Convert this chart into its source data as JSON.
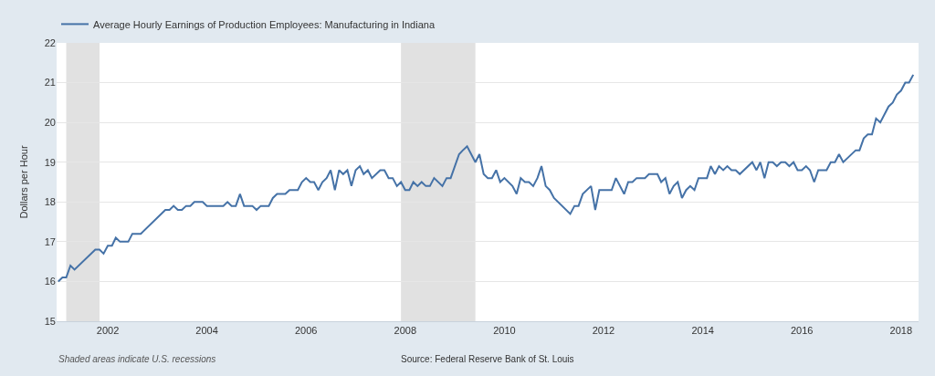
{
  "chart_data": {
    "type": "line",
    "ylabel": "Dollars per Hour",
    "x": [
      "2001-01",
      "2001-02",
      "2001-03",
      "2001-04",
      "2001-05",
      "2001-10",
      "2001-11",
      "2001-12",
      "2002-01",
      "2002-02",
      "2002-03",
      "2002-04",
      "2002-06",
      "2002-07",
      "2002-09",
      "2003-03",
      "2003-04",
      "2003-05",
      "2003-06",
      "2003-07",
      "2003-08",
      "2003-09",
      "2003-10",
      "2003-12",
      "2004-01",
      "2004-05",
      "2004-06",
      "2004-07",
      "2004-08",
      "2004-09",
      "2004-10",
      "2004-12",
      "2005-01",
      "2005-02",
      "2005-04",
      "2005-05",
      "2005-06",
      "2005-08",
      "2005-09",
      "2005-11",
      "2005-12",
      "2006-01",
      "2006-02",
      "2006-03",
      "2006-04",
      "2006-05",
      "2006-06",
      "2006-07",
      "2006-08",
      "2006-09",
      "2006-10",
      "2006-11",
      "2006-12",
      "2007-01",
      "2007-02",
      "2007-03",
      "2007-04",
      "2007-05",
      "2007-07",
      "2007-08",
      "2007-09",
      "2007-10",
      "2007-11",
      "2007-12",
      "2008-01",
      "2008-02",
      "2008-03",
      "2008-04",
      "2008-05",
      "2008-06",
      "2008-07",
      "2008-08",
      "2008-10",
      "2008-11",
      "2008-12",
      "2009-02",
      "2009-03",
      "2009-04",
      "2009-06",
      "2009-07",
      "2009-08",
      "2009-09",
      "2009-10",
      "2009-11",
      "2009-12",
      "2010-01",
      "2010-03",
      "2010-04",
      "2010-05",
      "2010-06",
      "2010-07",
      "2010-08",
      "2010-09",
      "2010-10",
      "2010-11",
      "2010-12",
      "2011-01",
      "2011-05",
      "2011-06",
      "2011-07",
      "2011-08",
      "2011-10",
      "2011-11",
      "2011-12",
      "2012-03",
      "2012-04",
      "2012-06",
      "2012-07",
      "2012-08",
      "2012-09",
      "2012-11",
      "2012-12",
      "2013-02",
      "2013-03",
      "2013-04",
      "2013-05",
      "2013-06",
      "2013-07",
      "2013-08",
      "2013-09",
      "2013-10",
      "2013-11",
      "2013-12",
      "2014-02",
      "2014-03",
      "2014-04",
      "2014-05",
      "2014-06",
      "2014-07",
      "2014-08",
      "2014-09",
      "2014-10",
      "2015-01",
      "2015-02",
      "2015-03",
      "2015-04",
      "2015-05",
      "2015-06",
      "2015-07",
      "2015-08",
      "2015-09",
      "2015-10",
      "2015-11",
      "2015-12",
      "2016-01",
      "2016-02",
      "2016-03",
      "2016-04",
      "2016-05",
      "2016-07",
      "2016-08",
      "2016-09",
      "2016-10",
      "2016-11",
      "2017-02",
      "2017-03",
      "2017-04",
      "2017-05",
      "2017-06",
      "2017-07",
      "2017-08",
      "2017-10",
      "2017-11",
      "2017-12",
      "2018-01",
      "2018-02",
      "2018-03",
      "2018-04"
    ],
    "series": [
      {
        "name": "Average Hourly Earnings of Production Employees: Manufacturing in Indiana",
        "color": "#4572a7",
        "values": [
          16.0,
          16.1,
          16.1,
          16.4,
          16.3,
          16.8,
          16.8,
          16.7,
          16.9,
          16.9,
          17.1,
          17.0,
          17.0,
          17.2,
          17.2,
          17.8,
          17.8,
          17.9,
          17.8,
          17.8,
          17.9,
          17.9,
          18.0,
          18.0,
          17.9,
          17.9,
          18.0,
          17.9,
          17.9,
          18.2,
          17.9,
          17.9,
          17.8,
          17.9,
          17.9,
          18.1,
          18.2,
          18.2,
          18.3,
          18.3,
          18.5,
          18.6,
          18.5,
          18.5,
          18.3,
          18.5,
          18.6,
          18.8,
          18.3,
          18.8,
          18.7,
          18.8,
          18.4,
          18.8,
          18.9,
          18.7,
          18.8,
          18.6,
          18.8,
          18.8,
          18.6,
          18.6,
          18.4,
          18.5,
          18.3,
          18.3,
          18.5,
          18.4,
          18.5,
          18.4,
          18.4,
          18.6,
          18.4,
          18.6,
          18.6,
          19.2,
          19.3,
          19.4,
          19.0,
          19.2,
          18.7,
          18.6,
          18.6,
          18.8,
          18.5,
          18.6,
          18.4,
          18.2,
          18.6,
          18.5,
          18.5,
          18.4,
          18.6,
          18.9,
          18.4,
          18.3,
          18.1,
          17.7,
          17.9,
          17.9,
          18.2,
          18.4,
          17.8,
          18.3,
          18.3,
          18.6,
          18.2,
          18.5,
          18.5,
          18.6,
          18.6,
          18.7,
          18.7,
          18.5,
          18.6,
          18.2,
          18.4,
          18.5,
          18.1,
          18.3,
          18.4,
          18.3,
          18.6,
          18.6,
          18.9,
          18.7,
          18.9,
          18.8,
          18.9,
          18.8,
          18.8,
          18.7,
          19.0,
          18.8,
          19.0,
          18.6,
          19.0,
          19.0,
          18.9,
          19.0,
          19.0,
          18.9,
          19.0,
          18.8,
          18.8,
          18.9,
          18.8,
          18.5,
          18.8,
          18.8,
          19.0,
          19.0,
          19.2,
          19.0,
          19.3,
          19.3,
          19.6,
          19.7,
          19.7,
          20.1,
          20.0,
          20.4,
          20.5,
          20.7,
          20.8,
          21.0,
          21.0,
          21.2
        ]
      }
    ],
    "xlim": [
      "2000-12-20",
      "2018-05-10"
    ],
    "xticks": [
      {
        "value": "2002-01-01",
        "label": "2002"
      },
      {
        "value": "2004-01-01",
        "label": "2004"
      },
      {
        "value": "2006-01-01",
        "label": "2006"
      },
      {
        "value": "2008-01-01",
        "label": "2008"
      },
      {
        "value": "2010-01-01",
        "label": "2010"
      },
      {
        "value": "2012-01-01",
        "label": "2012"
      },
      {
        "value": "2014-01-01",
        "label": "2014"
      },
      {
        "value": "2016-01-01",
        "label": "2016"
      },
      {
        "value": "2018-01-01",
        "label": "2018"
      }
    ],
    "ylim": [
      15,
      22
    ],
    "yticks": [
      15,
      16,
      17,
      18,
      19,
      20,
      21,
      22
    ],
    "grid": "y",
    "legend": "top left",
    "marker": "none",
    "line_style": "solid",
    "bands": [
      {
        "axis": "x",
        "from": "2001-03",
        "to": "2001-11",
        "color": "#e1e1e1"
      },
      {
        "axis": "x",
        "from": "2007-12",
        "to": "2009-06",
        "color": "#e1e1e1"
      }
    ],
    "annotations": [
      "Shaded areas indicate U.S. recessions",
      "Source: Federal Reserve Bank of St. Louis"
    ]
  }
}
